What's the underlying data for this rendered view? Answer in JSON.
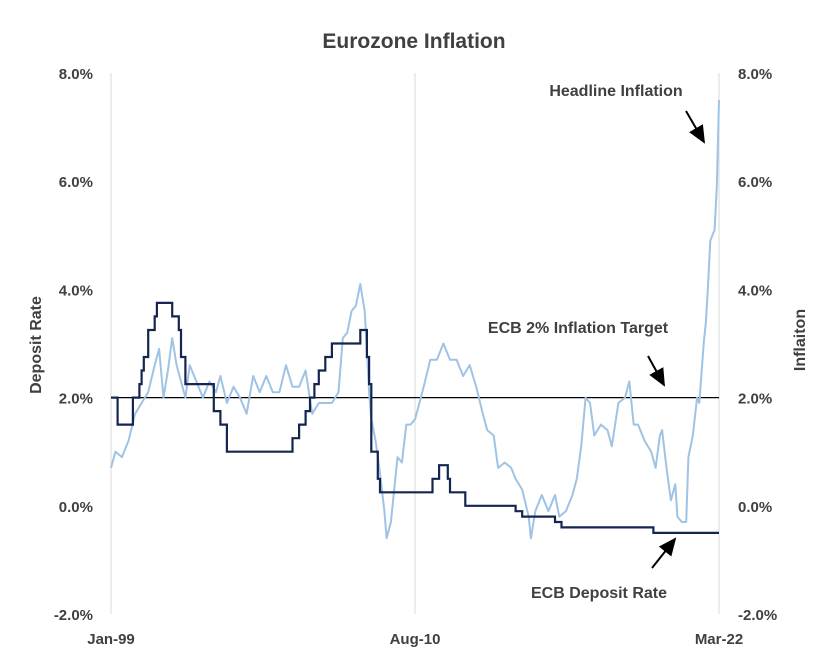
{
  "chart_data": {
    "type": "line",
    "title": "Eurozone Inflation",
    "ylabel_left": "Deposit  Rate",
    "ylabel_right": "Inflaiton",
    "ylim": [
      -2,
      8
    ],
    "y_ticks": [
      "8.0%",
      "6.0%",
      "4.0%",
      "2.0%",
      "0.0%",
      "-2.0%"
    ],
    "y_tick_values": [
      8,
      6,
      4,
      2,
      0,
      -2
    ],
    "x_range": [
      "1999-01",
      "2022-03"
    ],
    "x_ticks": [
      "Jan-99",
      "Aug-10",
      "Mar-22"
    ],
    "x_tick_dates": [
      "1999-01",
      "2010-08",
      "2022-03"
    ],
    "grid": "vertical",
    "colors": {
      "deposit": "#14254f",
      "inflation": "#9fc3e4",
      "target": "#000000"
    },
    "annotations": [
      {
        "text": "Headline Inflation",
        "points_to": "inflation",
        "at": "2022-01"
      },
      {
        "text": "ECB 2% Inflation Target",
        "points_to": "target",
        "at": "2020-05"
      },
      {
        "text": "ECB Deposit Rate",
        "points_to": "deposit",
        "at": "2020-05"
      }
    ],
    "series": [
      {
        "name": "ECB Deposit Rate",
        "key": "deposit",
        "axis": "left",
        "step": true,
        "points": [
          [
            "1999-01",
            2.0
          ],
          [
            "1999-04",
            1.5
          ],
          [
            "1999-11",
            2.0
          ],
          [
            "2000-02",
            2.25
          ],
          [
            "2000-03",
            2.5
          ],
          [
            "2000-04",
            2.75
          ],
          [
            "2000-06",
            3.25
          ],
          [
            "2000-09",
            3.5
          ],
          [
            "2000-10",
            3.75
          ],
          [
            "2001-05",
            3.5
          ],
          [
            "2001-08",
            3.25
          ],
          [
            "2001-09",
            2.75
          ],
          [
            "2001-11",
            2.25
          ],
          [
            "2002-12",
            1.75
          ],
          [
            "2003-03",
            1.5
          ],
          [
            "2003-06",
            1.0
          ],
          [
            "2005-12",
            1.25
          ],
          [
            "2006-03",
            1.5
          ],
          [
            "2006-06",
            1.75
          ],
          [
            "2006-08",
            2.0
          ],
          [
            "2006-10",
            2.25
          ],
          [
            "2006-12",
            2.5
          ],
          [
            "2007-03",
            2.75
          ],
          [
            "2007-06",
            3.0
          ],
          [
            "2008-07",
            3.25
          ],
          [
            "2008-10",
            2.75
          ],
          [
            "2008-11",
            2.25
          ],
          [
            "2008-12",
            1.0
          ],
          [
            "2009-01",
            1.0
          ],
          [
            "2009-03",
            0.5
          ],
          [
            "2009-04",
            0.25
          ],
          [
            "2011-04",
            0.5
          ],
          [
            "2011-07",
            0.75
          ],
          [
            "2011-11",
            0.5
          ],
          [
            "2011-12",
            0.25
          ],
          [
            "2012-07",
            0.0
          ],
          [
            "2014-06",
            -0.1
          ],
          [
            "2014-09",
            -0.2
          ],
          [
            "2015-12",
            -0.3
          ],
          [
            "2016-03",
            -0.4
          ],
          [
            "2019-09",
            -0.5
          ],
          [
            "2022-03",
            -0.5
          ]
        ]
      },
      {
        "name": "Headline Inflation",
        "key": "inflation",
        "axis": "right",
        "points": [
          [
            "1999-01",
            0.7
          ],
          [
            "1999-03",
            1.0
          ],
          [
            "1999-06",
            0.9
          ],
          [
            "1999-09",
            1.2
          ],
          [
            "1999-12",
            1.7
          ],
          [
            "2000-03",
            1.9
          ],
          [
            "2000-06",
            2.1
          ],
          [
            "2000-09",
            2.6
          ],
          [
            "2000-11",
            2.9
          ],
          [
            "2001-01",
            2.0
          ],
          [
            "2001-03",
            2.5
          ],
          [
            "2001-05",
            3.1
          ],
          [
            "2001-07",
            2.6
          ],
          [
            "2001-09",
            2.3
          ],
          [
            "2001-11",
            2.0
          ],
          [
            "2002-01",
            2.6
          ],
          [
            "2002-04",
            2.3
          ],
          [
            "2002-07",
            2.0
          ],
          [
            "2002-10",
            2.3
          ],
          [
            "2003-01",
            2.1
          ],
          [
            "2003-03",
            2.4
          ],
          [
            "2003-06",
            1.9
          ],
          [
            "2003-09",
            2.2
          ],
          [
            "2003-12",
            2.0
          ],
          [
            "2004-03",
            1.7
          ],
          [
            "2004-06",
            2.4
          ],
          [
            "2004-09",
            2.1
          ],
          [
            "2004-12",
            2.4
          ],
          [
            "2005-03",
            2.1
          ],
          [
            "2005-06",
            2.1
          ],
          [
            "2005-09",
            2.6
          ],
          [
            "2005-12",
            2.2
          ],
          [
            "2006-03",
            2.2
          ],
          [
            "2006-06",
            2.5
          ],
          [
            "2006-09",
            1.7
          ],
          [
            "2006-12",
            1.9
          ],
          [
            "2007-03",
            1.9
          ],
          [
            "2007-06",
            1.9
          ],
          [
            "2007-09",
            2.1
          ],
          [
            "2007-11",
            3.1
          ],
          [
            "2008-01",
            3.2
          ],
          [
            "2008-03",
            3.6
          ],
          [
            "2008-05",
            3.7
          ],
          [
            "2008-07",
            4.1
          ],
          [
            "2008-09",
            3.6
          ],
          [
            "2008-11",
            2.1
          ],
          [
            "2008-12",
            1.6
          ],
          [
            "2009-02",
            1.2
          ],
          [
            "2009-04",
            0.6
          ],
          [
            "2009-06",
            -0.1
          ],
          [
            "2009-07",
            -0.6
          ],
          [
            "2009-09",
            -0.3
          ],
          [
            "2009-11",
            0.5
          ],
          [
            "2009-12",
            0.9
          ],
          [
            "2010-02",
            0.8
          ],
          [
            "2010-04",
            1.5
          ],
          [
            "2010-06",
            1.5
          ],
          [
            "2010-08",
            1.6
          ],
          [
            "2010-10",
            1.9
          ],
          [
            "2010-12",
            2.2
          ],
          [
            "2011-03",
            2.7
          ],
          [
            "2011-06",
            2.7
          ],
          [
            "2011-09",
            3.0
          ],
          [
            "2011-12",
            2.7
          ],
          [
            "2012-03",
            2.7
          ],
          [
            "2012-06",
            2.4
          ],
          [
            "2012-09",
            2.6
          ],
          [
            "2012-12",
            2.2
          ],
          [
            "2013-03",
            1.7
          ],
          [
            "2013-05",
            1.4
          ],
          [
            "2013-08",
            1.3
          ],
          [
            "2013-10",
            0.7
          ],
          [
            "2014-01",
            0.8
          ],
          [
            "2014-04",
            0.7
          ],
          [
            "2014-06",
            0.5
          ],
          [
            "2014-09",
            0.3
          ],
          [
            "2014-12",
            -0.2
          ],
          [
            "2015-01",
            -0.6
          ],
          [
            "2015-03",
            -0.1
          ],
          [
            "2015-06",
            0.2
          ],
          [
            "2015-09",
            -0.1
          ],
          [
            "2015-12",
            0.2
          ],
          [
            "2016-02",
            -0.2
          ],
          [
            "2016-05",
            -0.1
          ],
          [
            "2016-08",
            0.2
          ],
          [
            "2016-10",
            0.5
          ],
          [
            "2016-12",
            1.1
          ],
          [
            "2017-02",
            2.0
          ],
          [
            "2017-04",
            1.9
          ],
          [
            "2017-06",
            1.3
          ],
          [
            "2017-09",
            1.5
          ],
          [
            "2017-12",
            1.4
          ],
          [
            "2018-02",
            1.1
          ],
          [
            "2018-05",
            1.9
          ],
          [
            "2018-08",
            2.0
          ],
          [
            "2018-10",
            2.3
          ],
          [
            "2018-12",
            1.5
          ],
          [
            "2019-02",
            1.5
          ],
          [
            "2019-05",
            1.2
          ],
          [
            "2019-08",
            1.0
          ],
          [
            "2019-10",
            0.7
          ],
          [
            "2019-12",
            1.3
          ],
          [
            "2020-01",
            1.4
          ],
          [
            "2020-03",
            0.7
          ],
          [
            "2020-05",
            0.1
          ],
          [
            "2020-07",
            0.4
          ],
          [
            "2020-08",
            -0.2
          ],
          [
            "2020-10",
            -0.3
          ],
          [
            "2020-12",
            -0.3
          ],
          [
            "2021-01",
            0.9
          ],
          [
            "2021-03",
            1.3
          ],
          [
            "2021-05",
            2.0
          ],
          [
            "2021-06",
            1.9
          ],
          [
            "2021-08",
            3.0
          ],
          [
            "2021-09",
            3.4
          ],
          [
            "2021-10",
            4.1
          ],
          [
            "2021-11",
            4.9
          ],
          [
            "2021-12",
            5.0
          ],
          [
            "2022-01",
            5.1
          ],
          [
            "2022-02",
            5.9
          ],
          [
            "2022-03",
            7.5
          ]
        ]
      },
      {
        "name": "ECB 2% Inflation Target",
        "key": "target",
        "axis": "left",
        "constant": 2.0
      }
    ]
  }
}
